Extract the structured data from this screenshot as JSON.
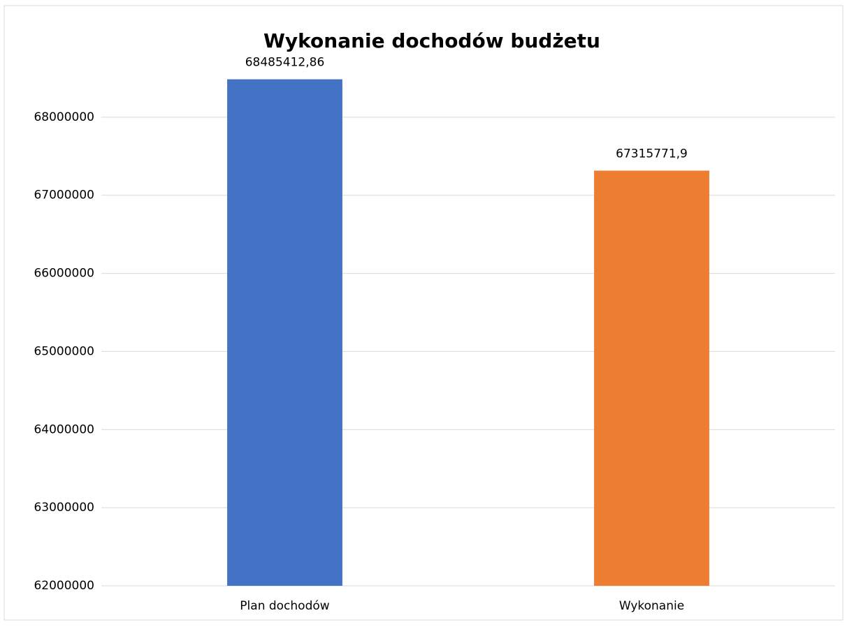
{
  "chart_data": {
    "type": "bar",
    "title": "Wykonanie dochodów  budżetu",
    "categories": [
      "Plan dochodów",
      "Wykonanie"
    ],
    "values": [
      68485412.86,
      67315771.9
    ],
    "value_labels": [
      "68485412,86",
      "67315771,9"
    ],
    "colors": [
      "#4472c4",
      "#ed7d31"
    ],
    "ylim": [
      62000000,
      69000000
    ],
    "yticks": [
      62000000,
      63000000,
      64000000,
      65000000,
      66000000,
      67000000,
      68000000
    ],
    "grid": true
  }
}
